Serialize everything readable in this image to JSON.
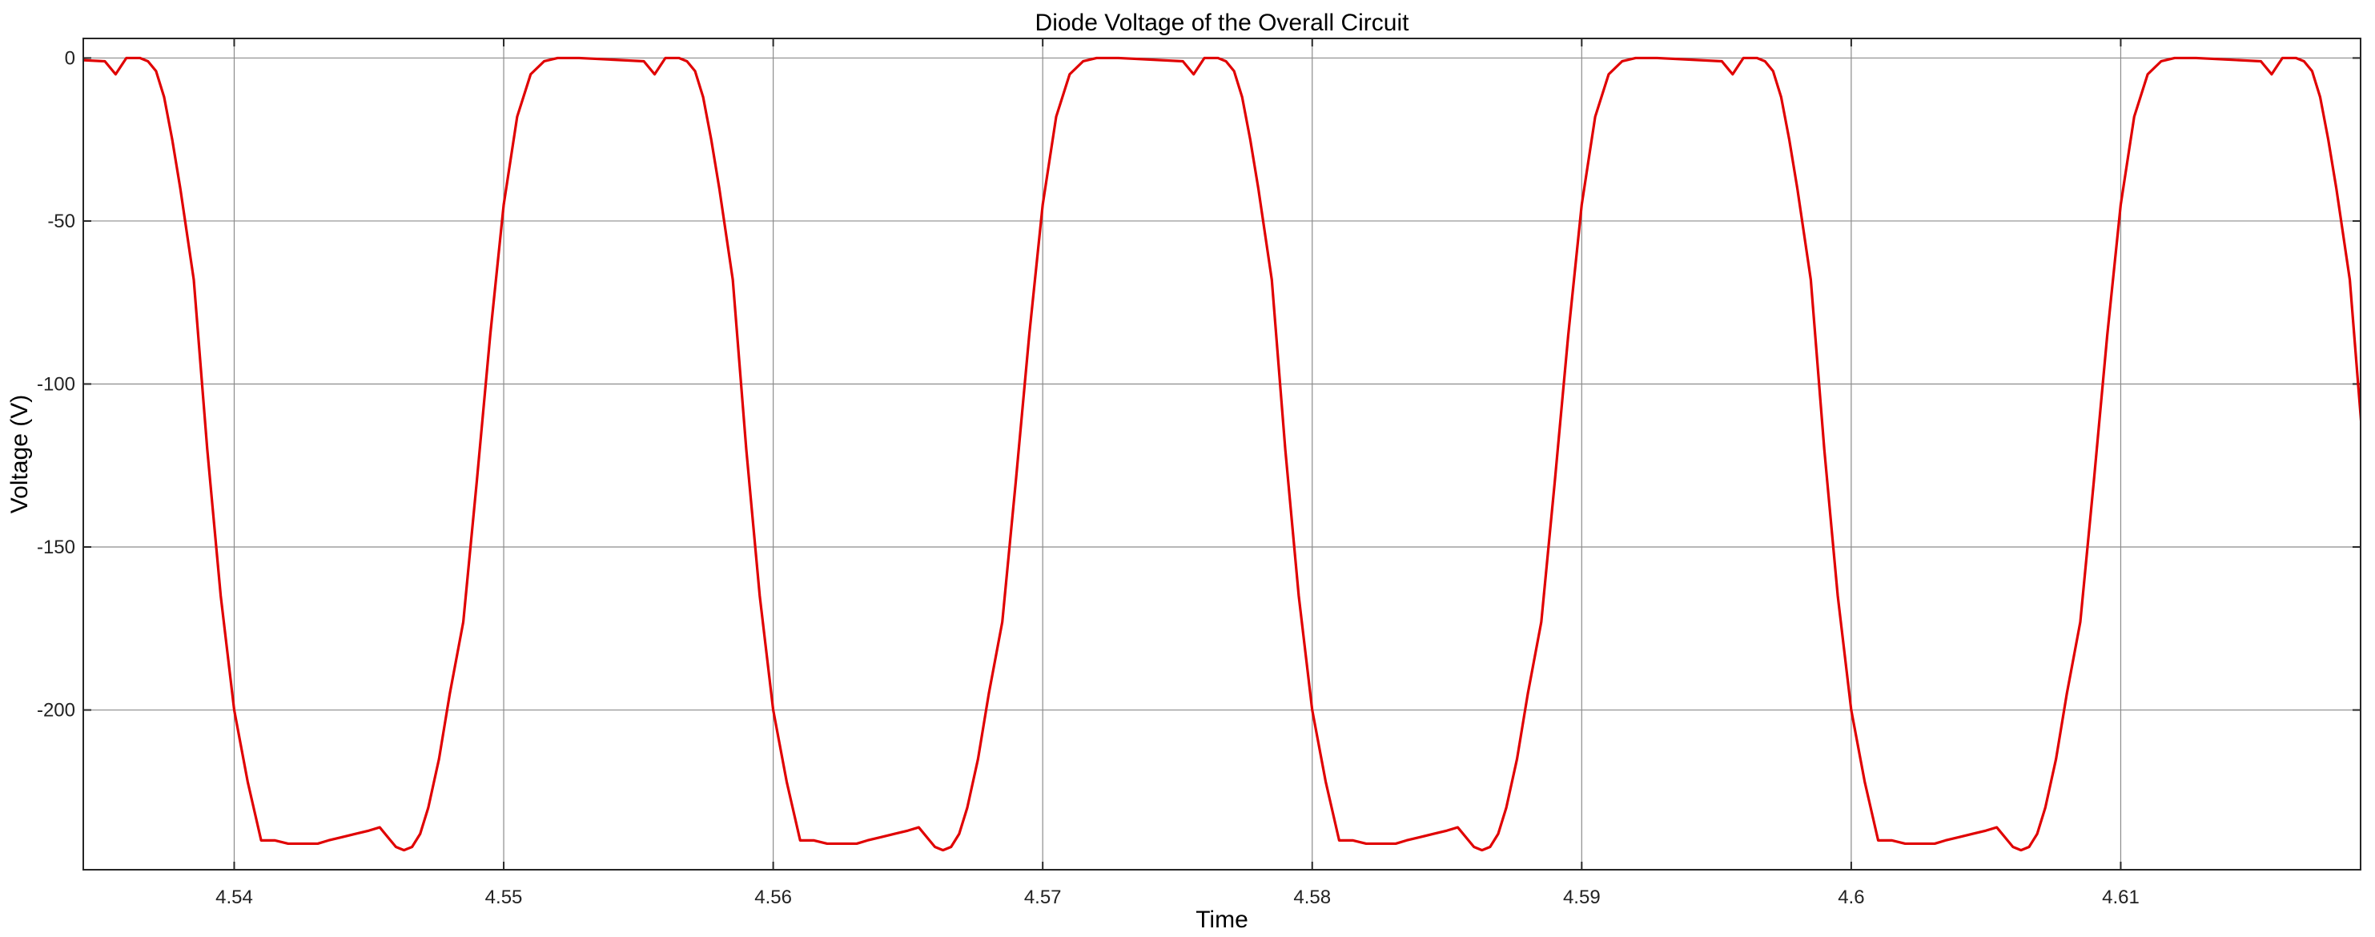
{
  "chart_data": {
    "type": "line",
    "title": "Diode Voltage of the Overall Circuit",
    "xlabel": "Time",
    "ylabel": "Voltage (V)",
    "xlim": [
      4.5344,
      4.6189
    ],
    "ylim": [
      -249,
      6
    ],
    "xticks": [
      4.54,
      4.55,
      4.56,
      4.57,
      4.58,
      4.59,
      4.6,
      4.61
    ],
    "xtick_labels": [
      "4.54",
      "4.55",
      "4.56",
      "4.57",
      "4.58",
      "4.59",
      "4.6",
      "4.61"
    ],
    "yticks": [
      0,
      -50,
      -100,
      -150,
      -200
    ],
    "ytick_labels": [
      "0",
      "-50",
      "-100",
      "-150",
      "-200"
    ],
    "grid": true,
    "period": 0.02,
    "series": [
      {
        "color": "#e00000",
        "period_start": 4.5328,
        "period_end": 4.5528,
        "x": [
          4.5328,
          4.5352,
          4.5356,
          4.536,
          4.5363,
          4.5365,
          4.5368,
          4.5371,
          4.5374,
          4.5377,
          4.538,
          4.5385,
          4.539,
          4.5395,
          4.54,
          4.5405,
          4.541,
          4.5415,
          4.542,
          4.5425,
          4.5428,
          4.5431,
          4.5435,
          4.544,
          4.5445,
          4.545,
          4.5454,
          4.5458,
          4.546,
          4.5463,
          4.5466,
          4.5469,
          4.5472,
          4.5476,
          4.548,
          4.5485,
          4.549,
          4.5495,
          4.55,
          4.5505,
          4.551,
          4.5515,
          4.552,
          4.5528
        ],
        "y": [
          0,
          -1,
          -5,
          0,
          0,
          0,
          -1,
          -4,
          -12,
          -25,
          -40,
          -68,
          -120,
          -165,
          -200,
          -222,
          -240,
          -240,
          -241,
          -241,
          -241,
          -241,
          -240,
          -239,
          -238,
          -237,
          -236,
          -240,
          -242,
          -243,
          -242,
          -238,
          -230,
          -215,
          -195,
          -173,
          -130,
          -85,
          -45,
          -18,
          -5,
          -1,
          0,
          0
        ]
      }
    ]
  }
}
